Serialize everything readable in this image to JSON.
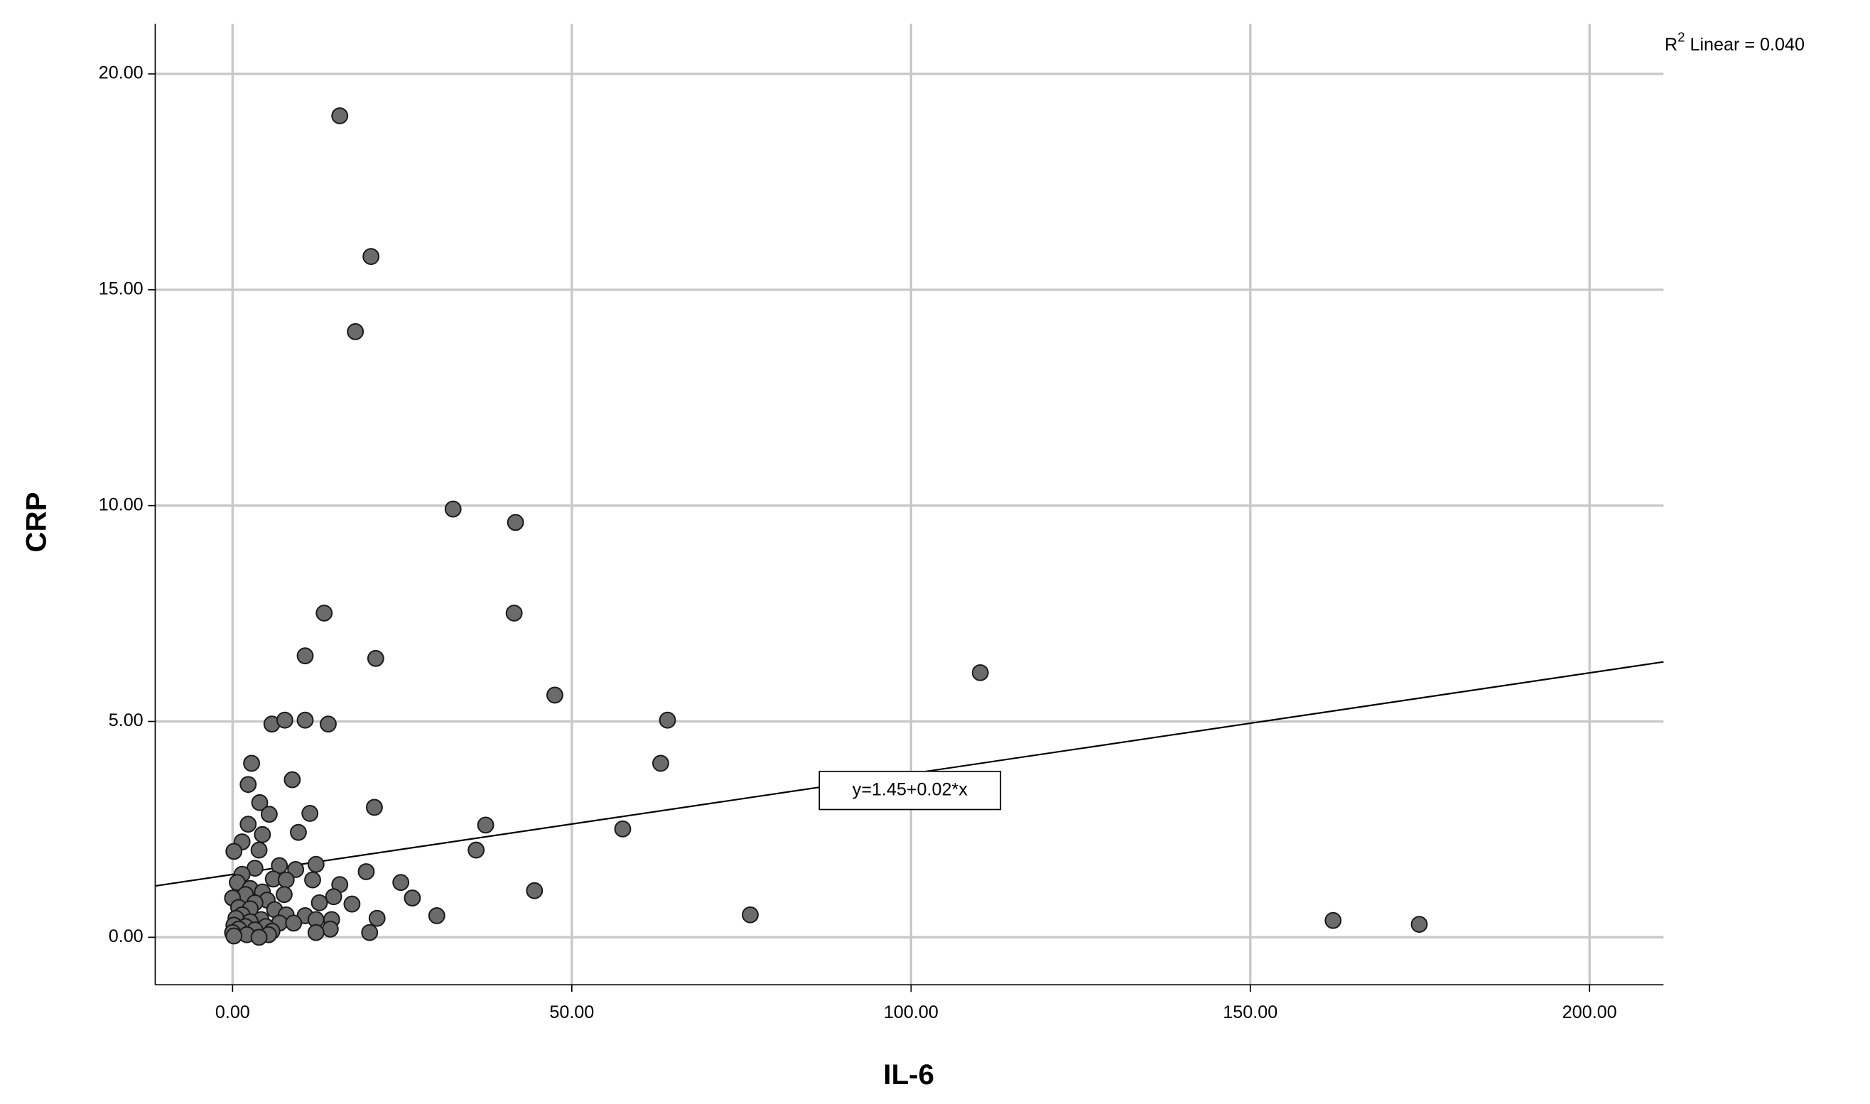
{
  "chart_data": {
    "type": "scatter",
    "x_label": "IL-6",
    "y_label": "CRP",
    "r2_label": [
      "R",
      "2",
      " Linear = 0.040"
    ],
    "fit_label": "y=1.45+0.02*x",
    "fit_line": {
      "x": [
        -11.4,
        210.9
      ],
      "y": [
        1.19,
        6.38
      ]
    },
    "xlim": [
      -11.4,
      210.9
    ],
    "ylim": [
      -1.1,
      21.16
    ],
    "xticks": [
      {
        "value": 0,
        "label": "0.00"
      },
      {
        "value": 50,
        "label": "50.00"
      },
      {
        "value": 100,
        "label": "100.00"
      },
      {
        "value": 150,
        "label": "150.00"
      },
      {
        "value": 200,
        "label": "200.00"
      }
    ],
    "yticks": [
      {
        "value": 0,
        "label": "0.00"
      },
      {
        "value": 5,
        "label": "5.00"
      },
      {
        "value": 10,
        "label": "10.00"
      },
      {
        "value": 15,
        "label": "15.00"
      },
      {
        "value": 20,
        "label": "20.00"
      }
    ],
    "grid": true,
    "color": "#6b6b6b",
    "x": [
      15.8,
      20.4,
      18.1,
      32.5,
      41.7,
      13.5,
      41.5,
      10.7,
      21.1,
      110.2,
      47.5,
      5.8,
      7.7,
      10.7,
      14.1,
      64.1,
      2.8,
      63.1,
      8.8,
      2.3,
      4.0,
      20.9,
      5.4,
      11.4,
      37.3,
      2.3,
      57.5,
      4.4,
      9.7,
      1.4,
      3.9,
      0.2,
      35.9,
      12.3,
      6.9,
      3.3,
      9.3,
      19.7,
      1.4,
      6.0,
      7.9,
      11.8,
      0.7,
      15.8,
      24.8,
      2.6,
      44.5,
      4.4,
      1.9,
      7.6,
      14.9,
      0.0,
      26.5,
      5.1,
      3.3,
      12.8,
      17.6,
      0.9,
      2.6,
      6.2,
      1.4,
      7.9,
      76.3,
      30.1,
      10.7,
      0.5,
      21.3,
      4.2,
      14.6,
      12.3,
      162.2,
      2.6,
      6.9,
      174.9,
      0.2,
      4.9,
      9.0,
      1.9,
      0.9,
      14.4,
      3.3,
      5.8,
      0.0,
      12.3,
      20.2,
      2.1,
      5.3,
      0.2,
      3.9
    ],
    "values": [
      19.03,
      15.77,
      14.03,
      9.92,
      9.61,
      7.51,
      7.51,
      6.52,
      6.46,
      6.13,
      5.61,
      4.94,
      5.03,
      5.03,
      4.94,
      5.03,
      4.03,
      4.03,
      3.65,
      3.54,
      3.12,
      3.01,
      2.85,
      2.87,
      2.6,
      2.62,
      2.51,
      2.38,
      2.43,
      2.21,
      2.02,
      1.99,
      2.02,
      1.69,
      1.66,
      1.6,
      1.57,
      1.52,
      1.46,
      1.35,
      1.33,
      1.33,
      1.27,
      1.22,
      1.27,
      1.13,
      1.08,
      1.05,
      0.99,
      0.99,
      0.94,
      0.91,
      0.91,
      0.86,
      0.8,
      0.8,
      0.77,
      0.69,
      0.66,
      0.64,
      0.52,
      0.52,
      0.52,
      0.5,
      0.5,
      0.44,
      0.44,
      0.41,
      0.41,
      0.41,
      0.39,
      0.36,
      0.33,
      0.3,
      0.28,
      0.25,
      0.33,
      0.25,
      0.19,
      0.19,
      0.17,
      0.14,
      0.11,
      0.11,
      0.11,
      0.06,
      0.06,
      0.03,
      0.0
    ]
  }
}
